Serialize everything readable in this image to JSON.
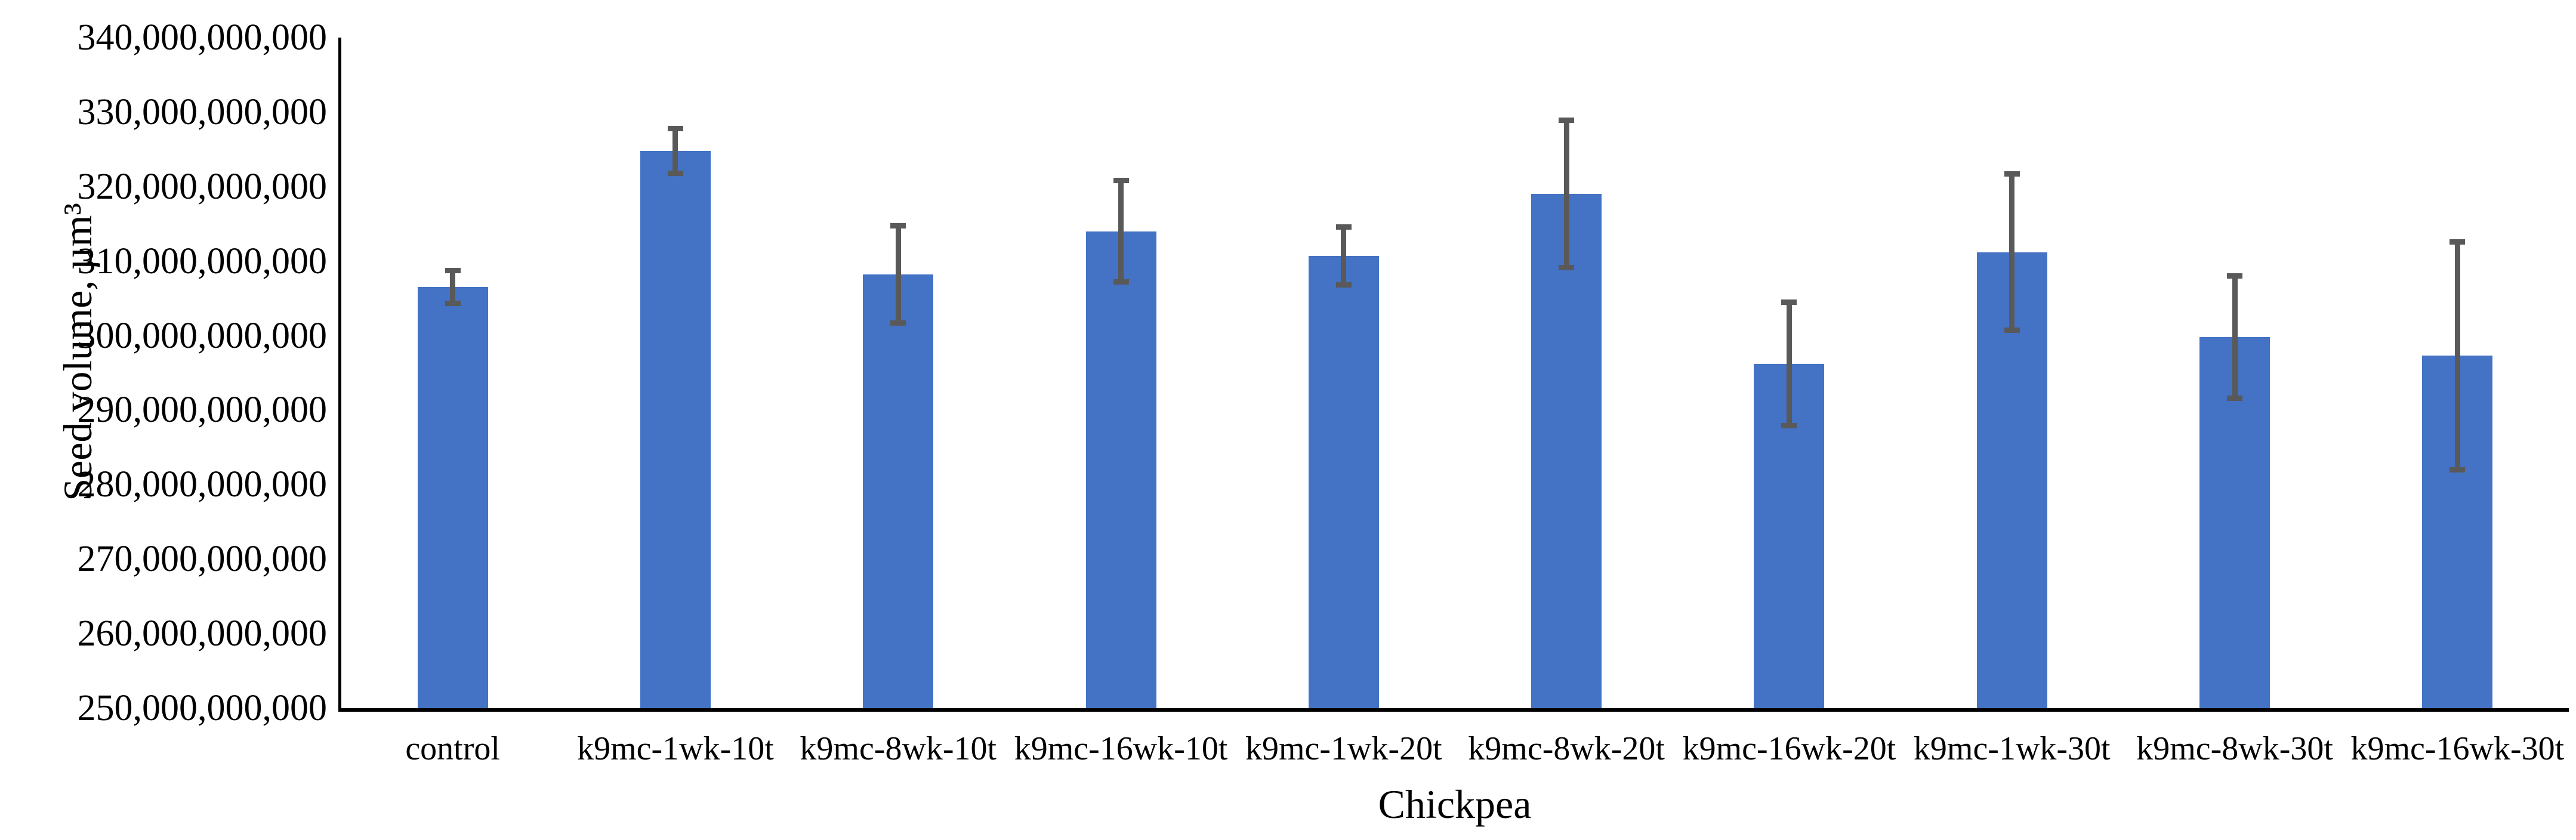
{
  "chart_data": {
    "type": "bar",
    "title": "",
    "xlabel": "Chickpea",
    "ylabel": "Seed volume, µm³",
    "categories": [
      "control",
      "k9mc-1wk-10t",
      "k9mc-8wk-10t",
      "k9mc-16wk-10t",
      "k9mc-1wk-20t",
      "k9mc-8wk-20t",
      "k9mc-16wk-20t",
      "k9mc-1wk-30t",
      "k9mc-8wk-30t",
      "k9mc-16wk-30t"
    ],
    "values": [
      306500000000,
      324800000000,
      308200000000,
      314000000000,
      310700000000,
      319000000000,
      296200000000,
      311200000000,
      299800000000,
      297300000000
    ],
    "error_bars": [
      2200000000,
      3000000000,
      6500000000,
      6800000000,
      3900000000,
      9900000000,
      8300000000,
      10500000000,
      8200000000,
      15300000000
    ],
    "ylim": [
      250000000000,
      340000000000
    ],
    "ytick_step": 10000000000,
    "ytick_labels": [
      "250,000,000,000",
      "260,000,000,000",
      "270,000,000,000",
      "280,000,000,000",
      "290,000,000,000",
      "300,000,000,000",
      "310,000,000,000",
      "320,000,000,000",
      "330,000,000,000",
      "340,000,000,000"
    ],
    "grid": false,
    "legend_position": "none",
    "bar_color": "#4472C4",
    "error_color": "#595959",
    "axis_color": "#000000",
    "text_color": "#000000",
    "background_color": "#FFFFFF"
  }
}
